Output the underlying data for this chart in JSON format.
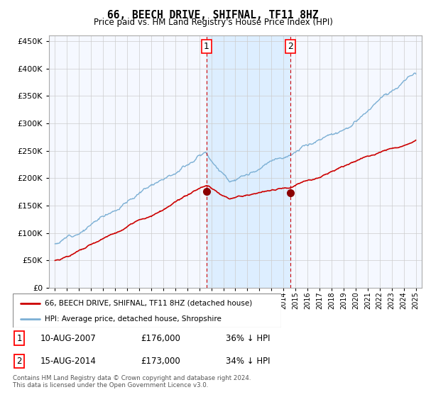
{
  "title": "66, BEECH DRIVE, SHIFNAL, TF11 8HZ",
  "subtitle": "Price paid vs. HM Land Registry's House Price Index (HPI)",
  "legend_line1": "66, BEECH DRIVE, SHIFNAL, TF11 8HZ (detached house)",
  "legend_line2": "HPI: Average price, detached house, Shropshire",
  "footnote1": "Contains HM Land Registry data © Crown copyright and database right 2024.",
  "footnote2": "This data is licensed under the Open Government Licence v3.0.",
  "transaction1_date": "10-AUG-2007",
  "transaction1_price": "£176,000",
  "transaction1_hpi": "36% ↓ HPI",
  "transaction2_date": "15-AUG-2014",
  "transaction2_price": "£173,000",
  "transaction2_hpi": "34% ↓ HPI",
  "marker1_x": 2007.6,
  "marker1_y": 176000,
  "marker2_x": 2014.6,
  "marker2_y": 173000,
  "hpi_color": "#7bafd4",
  "price_color": "#cc0000",
  "shade_color": "#ddeeff",
  "vline_color": "#cc0000",
  "background_color": "#e8eef8",
  "plot_bg_color": "#f5f8ff",
  "ylim_min": 0,
  "ylim_max": 460000,
  "xlim_min": 1994.5,
  "xlim_max": 2025.5,
  "yticks": [
    0,
    50000,
    100000,
    150000,
    200000,
    250000,
    300000,
    350000,
    400000,
    450000
  ]
}
